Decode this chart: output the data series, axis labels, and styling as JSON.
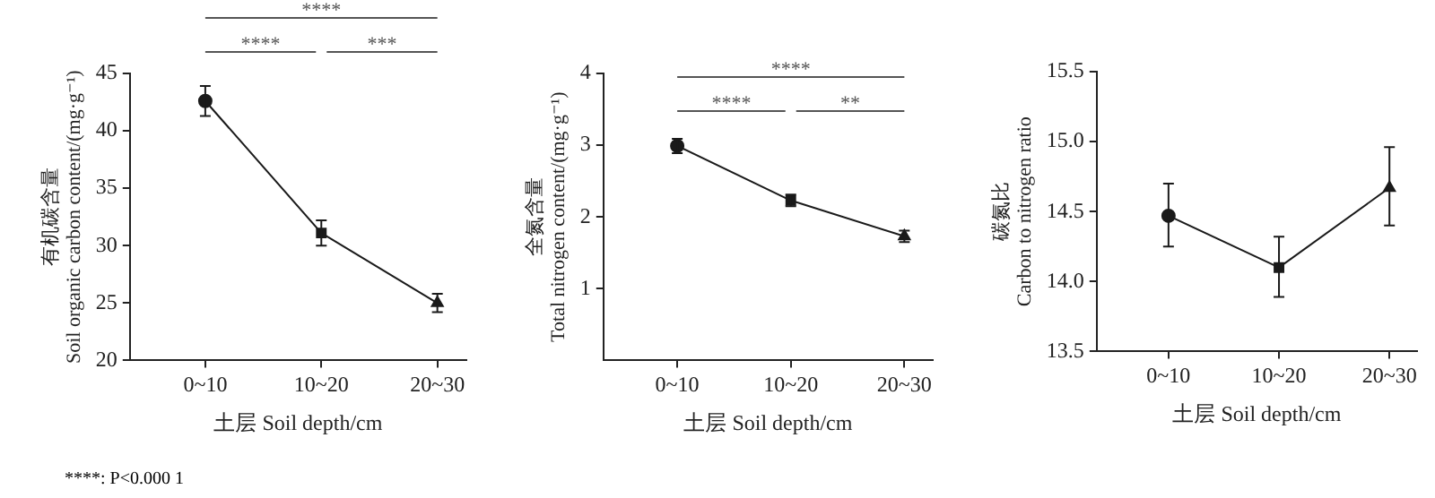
{
  "chart_data": [
    {
      "type": "line",
      "categories": [
        "0~10",
        "10~20",
        "20~30"
      ],
      "values": [
        42.6,
        31.1,
        25.0
      ],
      "errors": [
        1.3,
        1.1,
        0.8
      ],
      "color": "#1a1a1a",
      "marker": [
        "circle",
        "square",
        "triangle"
      ],
      "ylim": [
        20,
        45
      ],
      "yticks": [
        20,
        25,
        30,
        35,
        40,
        45
      ],
      "xlabel": "土层 Soil depth/cm",
      "ylabel": "有机碳含量\nSoil organic carbon content/(mg·g⁻¹)",
      "legend": false,
      "annotations": [
        "****",
        "****",
        "***",
        "****: P<0.000 1"
      ]
    },
    {
      "type": "line",
      "categories": [
        "0~10",
        "10~20",
        "20~30"
      ],
      "values": [
        2.99,
        2.23,
        1.73
      ],
      "errors": [
        0.1,
        0.08,
        0.08
      ],
      "color": "#1a1a1a",
      "marker": [
        "circle",
        "square",
        "triangle"
      ],
      "ylim": [
        0,
        4
      ],
      "yticks": [
        1,
        2,
        3,
        4
      ],
      "xlabel": "土层 Soil depth/cm",
      "ylabel": "全氮含量\nTotal nitrogen content/(mg·g⁻¹)",
      "legend": false,
      "annotations": [
        "****",
        "****",
        "**"
      ]
    },
    {
      "type": "line",
      "categories": [
        "0~10",
        "10~20",
        "20~30"
      ],
      "values": [
        14.47,
        14.1,
        14.67
      ],
      "errors": [
        [
          14.25,
          14.7
        ],
        [
          13.89,
          14.32
        ],
        [
          14.4,
          14.96
        ]
      ],
      "color": "#1a1a1a",
      "marker": [
        "circle",
        "square",
        "triangle"
      ],
      "ylim": [
        13.5,
        15.5
      ],
      "yticks": [
        13.5,
        {
          "value": 14,
          "label": "14.0"
        },
        14.5,
        {
          "value": 15,
          "label": "15.0"
        },
        15.5
      ],
      "xlabel": "土层 Soil depth/cm",
      "ylabel": "碳氮比\nCarbon to nitrogen ratio",
      "legend": false
    }
  ]
}
